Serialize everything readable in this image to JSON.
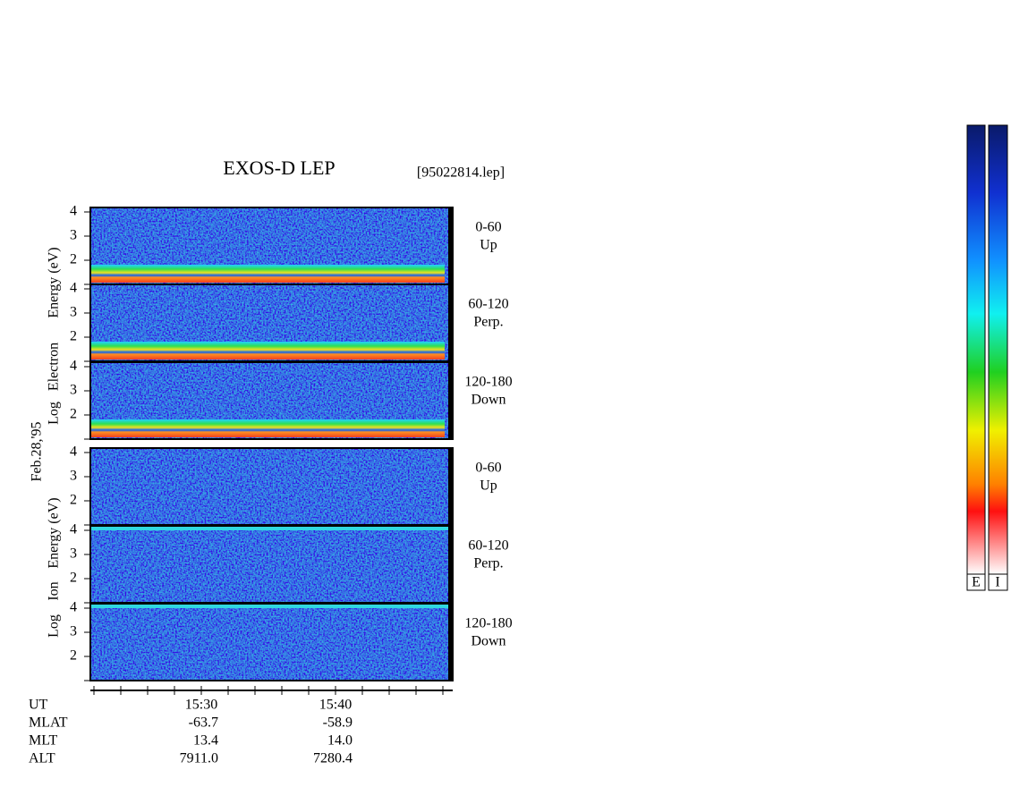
{
  "title": "EXOS-D LEP",
  "file": "[95022814.lep]",
  "date": "Feb.28,'95",
  "electron_axis_label": [
    "Log",
    "Electron",
    "Energy (eV)"
  ],
  "ion_axis_label": [
    "Log",
    "Ion",
    "Energy (eV)"
  ],
  "panels": [
    {
      "label": [
        "0-60",
        "Up"
      ]
    },
    {
      "label": [
        "60-120",
        "Perp."
      ]
    },
    {
      "label": [
        "120-180",
        "Down"
      ]
    },
    {
      "label": [
        "0-60",
        "Up"
      ]
    },
    {
      "label": [
        "60-120",
        "Perp."
      ]
    },
    {
      "label": [
        "120-180",
        "Down"
      ]
    }
  ],
  "yticks": [
    2,
    3,
    4
  ],
  "ephemeris": {
    "rows": [
      [
        "UT",
        "15:30",
        "15:40"
      ],
      [
        "MLAT",
        "-63.7",
        "-58.9"
      ],
      [
        "MLT",
        "13.4",
        "14.0"
      ],
      [
        "ALT",
        "7911.0",
        "7280.4"
      ]
    ]
  },
  "colorbar_labels": [
    "E",
    "I"
  ]
}
